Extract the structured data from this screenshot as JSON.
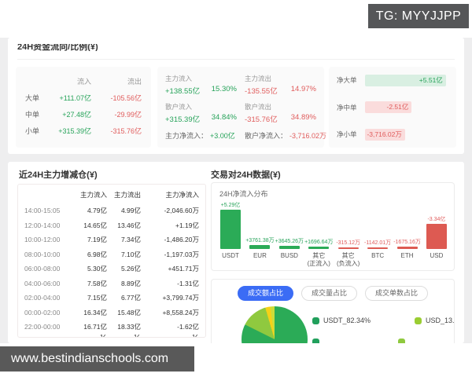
{
  "colors": {
    "green": "#27a35a",
    "red": "#e05c5c",
    "blue": "#3b6cf5",
    "green_bar": "#2bab57",
    "red_bar": "#dd5a52"
  },
  "watermarks": {
    "tg_badge": "TG: MYYJJPP",
    "site": "www.bestindianschools.com"
  },
  "section1": {
    "title": "24H资金流向/比例(¥)",
    "flow_table": {
      "headers": {
        "inflow": "流入",
        "outflow": "流出"
      },
      "rows": [
        {
          "label": "大单",
          "inflow": "+111.07亿",
          "outflow": "-105.56亿"
        },
        {
          "label": "中单",
          "inflow": "+27.48亿",
          "outflow": "-29.99亿"
        },
        {
          "label": "小单",
          "inflow": "+315.39亿",
          "outflow": "-315.76亿"
        }
      ]
    },
    "stats": {
      "main_inflow_label": "主力流入",
      "main_inflow_value": "+138.55亿",
      "main_inflow_pct": "15.30%",
      "main_outflow_label": "主力流出",
      "main_outflow_value": "-135.55亿",
      "main_outflow_pct": "14.97%",
      "retail_inflow_label": "散户流入",
      "retail_inflow_value": "+315.39亿",
      "retail_inflow_pct": "34.84%",
      "retail_outflow_label": "散户流出",
      "retail_outflow_value": "-315.76亿",
      "retail_outflow_pct": "34.89%",
      "main_net_label": "主力净流入：",
      "main_net_value": "+3.00亿",
      "retail_net_label": "散户净流入：",
      "retail_net_value": "-3,716.02万"
    },
    "net_bars": [
      {
        "label": "净大单",
        "value": "+5.51亿",
        "positive": true,
        "width_pct": 97
      },
      {
        "label": "净中单",
        "value": "-2.51亿",
        "positive": false,
        "width_pct": 56
      },
      {
        "label": "净小单",
        "value": "-3,716.02万",
        "positive": false,
        "width_pct": 48
      }
    ]
  },
  "section2": {
    "left_title": "近24H主力增减仓(¥)",
    "table": {
      "headers": {
        "time": "",
        "inflow": "主力流入",
        "outflow": "主力流出",
        "net": "主力净流入"
      },
      "rows": [
        {
          "time": "14:00-15:05",
          "inflow": "4.79亿",
          "outflow": "4.99亿",
          "net": "-2,046.60万"
        },
        {
          "time": "12:00-14:00",
          "inflow": "14.65亿",
          "outflow": "13.46亿",
          "net": "+1.19亿"
        },
        {
          "time": "10:00-12:00",
          "inflow": "7.19亿",
          "outflow": "7.34亿",
          "net": "-1,486.20万"
        },
        {
          "time": "08:00-10:00",
          "inflow": "6.98亿",
          "outflow": "7.10亿",
          "net": "-1,197.03万"
        },
        {
          "time": "06:00-08:00",
          "inflow": "5.30亿",
          "outflow": "5.26亿",
          "net": "+451.71万"
        },
        {
          "time": "04:00-06:00",
          "inflow": "7.58亿",
          "outflow": "8.89亿",
          "net": "-1.31亿"
        },
        {
          "time": "02:00-04:00",
          "inflow": "7.15亿",
          "outflow": "6.77亿",
          "net": "+3,799.74万"
        },
        {
          "time": "00:00-02:00",
          "inflow": "16.34亿",
          "outflow": "15.48亿",
          "net": "+8,558.24万"
        },
        {
          "time": "22:00-00:00",
          "inflow": "16.71亿",
          "outflow": "18.33亿",
          "net": "-1.62亿"
        }
      ],
      "partial_row": {
        "time": "",
        "inflow": "亿",
        "outflow": "亿",
        "net": "亿"
      }
    },
    "right_title": "交易对24H数据(¥)",
    "bar_chart": {
      "title": "24H净流入分布",
      "bars": [
        {
          "label": "USDT",
          "sublabel": "",
          "value": "+5.29亿",
          "positive": true,
          "h": 50
        },
        {
          "label": "EUR",
          "sublabel": "",
          "value": "+3761.38万",
          "positive": true,
          "h": 5
        },
        {
          "label": "BUSD",
          "sublabel": "",
          "value": "+3645.26万",
          "positive": true,
          "h": 4
        },
        {
          "label": "其它",
          "sublabel": "(正流入)",
          "value": "+1696.64万",
          "positive": true,
          "h": 3
        },
        {
          "label": "其它",
          "sublabel": "(负流入)",
          "value": "-315.12万",
          "positive": false,
          "h": 2
        },
        {
          "label": "BTC",
          "sublabel": "",
          "value": "-1142.01万",
          "positive": false,
          "h": 2
        },
        {
          "label": "ETH",
          "sublabel": "",
          "value": "-1675.16万",
          "positive": false,
          "h": 3
        },
        {
          "label": "USD",
          "sublabel": "",
          "value": "-3.34亿",
          "positive": false,
          "h": 32
        }
      ]
    },
    "pie_panel": {
      "buttons": [
        {
          "label": "成交额占比",
          "active": true
        },
        {
          "label": "成交量占比",
          "active": false
        },
        {
          "label": "成交单数占比",
          "active": false
        }
      ],
      "legend": [
        {
          "label": "USDT_82.34%",
          "dot": "#21a05c"
        },
        {
          "label": "USD_13.12%",
          "dot": "#9acd32"
        }
      ],
      "legend_partial_dots": [
        "#21a05c",
        "#8fc93f"
      ]
    }
  },
  "chart_data": [
    {
      "type": "bar",
      "title": "24H净流入分布",
      "categories": [
        "USDT",
        "EUR",
        "BUSD",
        "其它(正流入)",
        "其它(负流入)",
        "BTC",
        "ETH",
        "USD"
      ],
      "values_wan": [
        52900,
        3761.38,
        3645.26,
        1696.64,
        -315.12,
        -1142.01,
        -1675.16,
        -33400
      ],
      "data_labels": [
        "+5.29亿",
        "+3761.38万",
        "+3645.26万",
        "+1696.64万",
        "-315.12万",
        "-1142.01万",
        "-1675.16万",
        "-3.34亿"
      ],
      "xlabel": "",
      "ylabel": "",
      "grid": false
    },
    {
      "type": "pie",
      "slices": [
        {
          "name": "USDT_82.34%",
          "value": 82.34,
          "color": "#2bab57"
        },
        {
          "name": "USD_13.12%",
          "value": 13.12,
          "color": "#8fc93f"
        },
        {
          "name": "other",
          "value": 2.5,
          "color": "#f5d118"
        },
        {
          "name": "other2",
          "value": 2.04,
          "color": "#cddc39"
        }
      ],
      "legend_position": "right"
    }
  ]
}
